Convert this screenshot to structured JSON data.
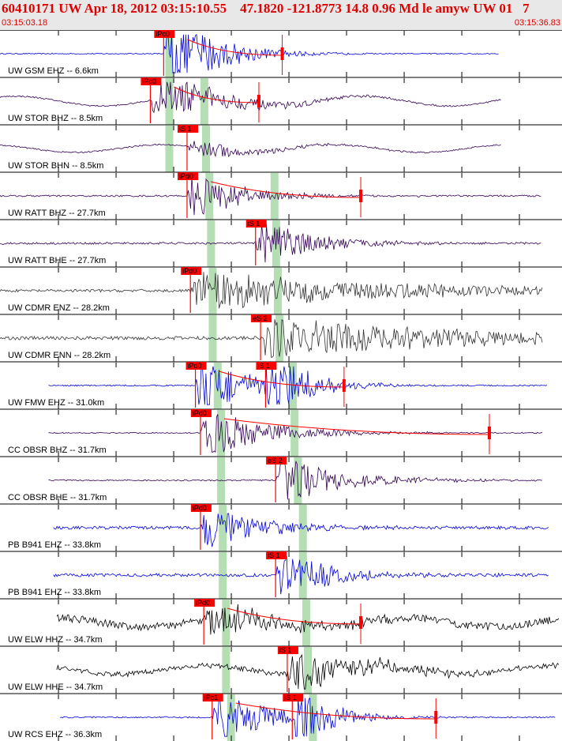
{
  "header": {
    "title": "60410171 UW Apr 18, 2012 03:15:10.55    47.1820 -121.8773 14.8 0.96 Md le amyw UW 01   7",
    "time_start": "03:15:03.18",
    "time_end": "03:15:36.83"
  },
  "colors": {
    "header_text": "#e00000",
    "pick_box": "#ff0000",
    "window_band": "#b5deb5",
    "coda": "#ff0000"
  },
  "chart_data": {
    "type": "line",
    "title": "",
    "xlabel": "",
    "ylabel": "",
    "x_range_seconds": [
      0,
      33.65
    ],
    "grid": true,
    "traces": [
      {
        "label": "UW GSM EHZ -- 6.6km",
        "color": "#0000dd",
        "start": 0.0,
        "end": 29.9,
        "noise": 0.03,
        "burst": 3.0,
        "decay": 0.35,
        "picks": [
          {
            "label": "iPc0",
            "t": 9.8
          }
        ],
        "green": [
          9.9
        ],
        "coda_end": 16.9
      },
      {
        "label": "UW STOR BHZ -- 8.5km",
        "color": "#330055",
        "start": 0.0,
        "end": 30.0,
        "noise": 0.04,
        "burst": 1.6,
        "decay": 0.25,
        "swell": 0.28,
        "picks": [
          {
            "label": "iPc0",
            "t": 9.0
          }
        ],
        "green": [
          9.9,
          12.0
        ],
        "coda_end": 15.5
      },
      {
        "label": "UW STOR BHN -- 8.5km",
        "color": "#330055",
        "start": 0.0,
        "end": 30.0,
        "noise": 0.04,
        "burst": 0.6,
        "decay": 0.25,
        "swell": 0.22,
        "picks": [
          {
            "label": "iS 1",
            "t": 11.2
          }
        ],
        "green": [
          9.9,
          12.1
        ]
      },
      {
        "label": "UW RATT BHZ -- 27.7km",
        "color": "#330055",
        "start": 0.0,
        "end": 32.4,
        "noise": 0.05,
        "burst": 1.5,
        "decay": 0.3,
        "picks": [
          {
            "label": "iPd0",
            "t": 11.2
          }
        ],
        "green": [
          12.3,
          16.2
        ],
        "coda_end": 21.6
      },
      {
        "label": "UW RATT BHE -- 27.7km",
        "color": "#330055",
        "start": 0.0,
        "end": 32.4,
        "noise": 0.06,
        "burst": 1.6,
        "decay": 0.3,
        "picks": [
          {
            "label": "iS 1",
            "t": 15.3
          }
        ],
        "green": [
          12.4,
          16.3
        ]
      },
      {
        "label": "UW CDMR ENZ -- 28.2km",
        "color": "#333333",
        "start": 0.0,
        "end": 32.5,
        "noise": 0.08,
        "burst": 1.2,
        "decay": 0.08,
        "picks": [
          {
            "label": "iPd0",
            "t": 11.4
          }
        ],
        "green": [
          12.5,
          16.4
        ]
      },
      {
        "label": "UW CDMR ENN -- 28.2km",
        "color": "#333333",
        "start": 0.0,
        "end": 32.5,
        "noise": 0.1,
        "burst": 1.3,
        "decay": 0.08,
        "picks": [
          {
            "label": "eS 2",
            "t": 15.6
          }
        ],
        "green": [
          12.5,
          16.5
        ]
      },
      {
        "label": "UW FMW EHZ -- 31.0km",
        "color": "#0000dd",
        "start": 2.9,
        "end": 32.8,
        "noise": 0.04,
        "burst": 2.0,
        "decay": 0.3,
        "picks": [
          {
            "label": "iPd0",
            "t": 11.7
          },
          {
            "label": "iS 1",
            "t": 15.9
          }
        ],
        "green": [
          12.8,
          17.3
        ],
        "coda_end": 20.6
      },
      {
        "label": "CC OBSR BHZ -- 31.7km",
        "color": "#330055",
        "start": 2.9,
        "end": 32.5,
        "noise": 0.03,
        "burst": 1.6,
        "decay": 0.25,
        "picks": [
          {
            "label": "iPd0",
            "t": 12.0
          }
        ],
        "green": [
          13.0,
          17.4
        ],
        "coda_end": 29.3
      },
      {
        "label": "CC OBSR BHE -- 31.7km",
        "color": "#330055",
        "start": 2.9,
        "end": 32.5,
        "noise": 0.04,
        "burst": 1.5,
        "decay": 0.25,
        "picks": [
          {
            "label": "eS 2",
            "t": 16.5
          }
        ],
        "green": [
          13.0,
          17.6
        ]
      },
      {
        "label": "PB B941 EHZ -- 33.8km",
        "color": "#0000dd",
        "start": 3.2,
        "end": 32.9,
        "noise": 0.09,
        "burst": 1.5,
        "decay": 0.3,
        "picks": [
          {
            "label": "iPd0",
            "t": 12.0
          }
        ],
        "green": [
          13.1,
          17.9
        ]
      },
      {
        "label": "PB B941 EHZ -- 33.8km",
        "color": "#0000dd",
        "start": 3.2,
        "end": 32.9,
        "noise": 0.09,
        "burst": 1.5,
        "decay": 0.3,
        "picks": [
          {
            "label": "iS 1",
            "t": 16.5
          }
        ],
        "green": [
          13.1,
          17.9
        ]
      },
      {
        "label": "UW ELW HHZ -- 34.7km",
        "color": "#000000",
        "start": 3.4,
        "end": 33.5,
        "noise": 0.22,
        "burst": 1.0,
        "decay": 0.2,
        "swell": 0.25,
        "picks": [
          {
            "label": "iPd0",
            "t": 12.2
          }
        ],
        "green": [
          13.3,
          18.1
        ],
        "coda_end": 21.6
      },
      {
        "label": "UW ELW HHE -- 34.7km",
        "color": "#000000",
        "start": 3.4,
        "end": 33.5,
        "noise": 0.15,
        "burst": 1.2,
        "decay": 0.2,
        "swell": 0.25,
        "picks": [
          {
            "label": "iS 1",
            "t": 17.2
          }
        ],
        "green": [
          13.3,
          18.2
        ]
      },
      {
        "label": "UW RCS EHZ -- 36.3km",
        "color": "#0000dd",
        "start": 3.6,
        "end": 33.3,
        "noise": 0.04,
        "burst": 1.7,
        "decay": 0.3,
        "picks": [
          {
            "label": "iPc1",
            "t": 12.7
          },
          {
            "label": "iS 1",
            "t": 17.5
          }
        ],
        "green": [
          13.6,
          18.5
        ],
        "coda_end": 26.1
      }
    ]
  }
}
